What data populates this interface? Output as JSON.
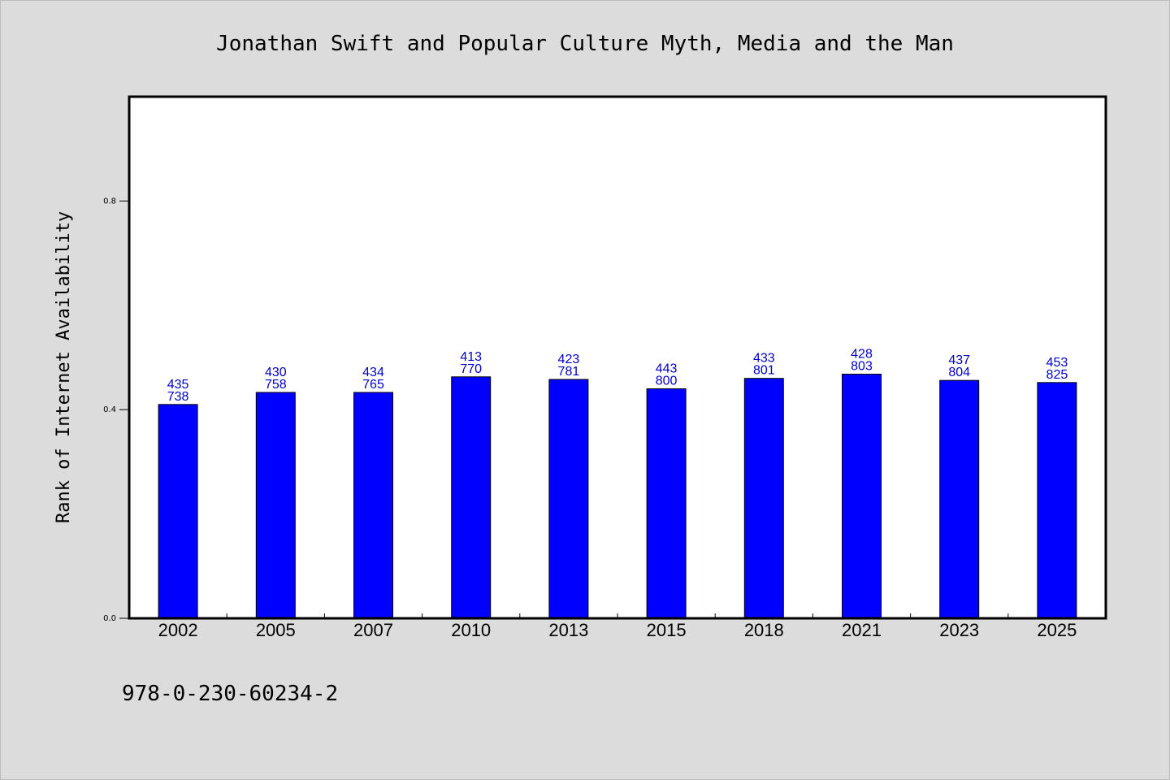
{
  "chart_data": {
    "type": "bar",
    "title": "Jonathan Swift and Popular Culture Myth, Media and the Man",
    "ylabel": "Rank of Internet Availability",
    "xlabel": "",
    "categories": [
      "2002",
      "2005",
      "2007",
      "2010",
      "2013",
      "2015",
      "2018",
      "2021",
      "2023",
      "2025"
    ],
    "values": [
      0.41,
      0.433,
      0.433,
      0.463,
      0.458,
      0.44,
      0.46,
      0.468,
      0.456,
      0.452
    ],
    "label_top": [
      "435",
      "430",
      "434",
      "413",
      "423",
      "443",
      "433",
      "428",
      "437",
      "453"
    ],
    "label_bottom": [
      "738",
      "758",
      "765",
      "770",
      "781",
      "800",
      "801",
      "803",
      "804",
      "825"
    ],
    "ylim": [
      0,
      1
    ],
    "yticks": [
      0.0,
      0.4,
      0.8
    ],
    "ytick_labels": [
      "0.0",
      "0.4",
      "0.8"
    ],
    "grid": false,
    "colors": {
      "bar": "#0000ff",
      "bar_label": "#0000cc",
      "background": "#dcdcdc",
      "plot_background": "#ffffff"
    }
  },
  "footer": {
    "isbn": "978-0-230-60234-2"
  }
}
